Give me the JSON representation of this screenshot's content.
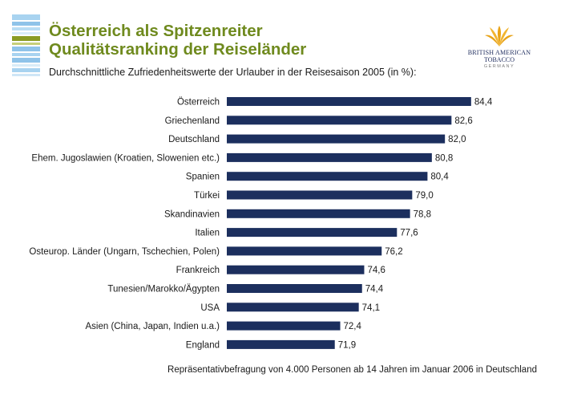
{
  "header": {
    "title_line1": "Österreich als Spitzenreiter",
    "title_line2": "Qualitätsranking der Reiseländer",
    "subtitle": "Durchschnittliche Zufriedenheitswerte der Urlauber in der Reisesaison 2005 (in %):"
  },
  "logo": {
    "line1": "BRITISH AMERICAN",
    "line2": "TOBACCO",
    "line3": "GERMANY",
    "icon": "bat-leaf-logo-icon"
  },
  "footnote": "Repräsentativbefragung von 4.000 Personen ab 14 Jahren im Januar 2006 in Deutschland",
  "colors": {
    "bar": "#1c2f5e",
    "title": "#6f8a1e",
    "stripe_blue": "#8fc3e9",
    "stripe_green": "#8a9b23",
    "logo_gold": "#e8a317"
  },
  "chart_data": {
    "type": "bar",
    "orientation": "horizontal",
    "categories": [
      "Österreich",
      "Griechenland",
      "Deutschland",
      "Ehem. Jugoslawien (Kroatien, Slowenien etc.)",
      "Spanien",
      "Türkei",
      "Skandinavien",
      "Italien",
      "Osteurop. Länder (Ungarn, Tschechien, Polen)",
      "Frankreich",
      "Tunesien/Marokko/Ägypten",
      "USA",
      "Asien (China, Japan, Indien u.a.)",
      "England"
    ],
    "values": [
      84.4,
      82.6,
      82.0,
      80.8,
      80.4,
      79.0,
      78.8,
      77.6,
      76.2,
      74.6,
      74.4,
      74.1,
      72.4,
      71.9
    ],
    "value_labels": [
      "84,4",
      "82,6",
      "82,0",
      "80,8",
      "80,4",
      "79,0",
      "78,8",
      "77,6",
      "76,2",
      "74,6",
      "74,4",
      "74,1",
      "72,4",
      "71,9"
    ],
    "xlim": [
      62,
      85
    ],
    "grid": false,
    "legend": "none"
  }
}
